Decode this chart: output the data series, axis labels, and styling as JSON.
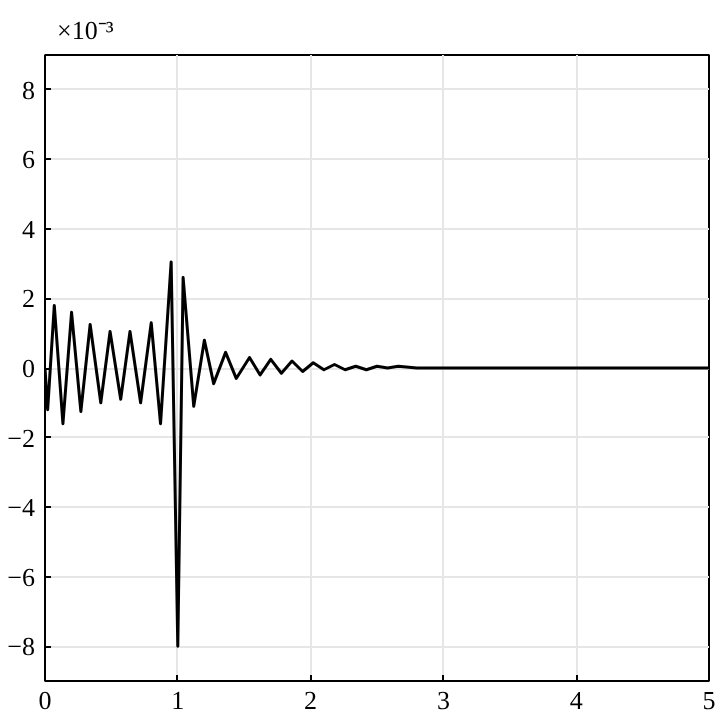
{
  "chart_data": {
    "type": "line",
    "x": [
      0,
      0.02,
      0.07,
      0.135,
      0.2,
      0.27,
      0.34,
      0.42,
      0.49,
      0.57,
      0.64,
      0.72,
      0.8,
      0.87,
      0.95,
      1.0,
      1.04,
      1.12,
      1.2,
      1.27,
      1.36,
      1.44,
      1.54,
      1.62,
      1.7,
      1.78,
      1.86,
      1.94,
      2.02,
      2.1,
      2.18,
      2.26,
      2.34,
      2.42,
      2.5,
      2.58,
      2.66,
      2.8,
      5
    ],
    "series": [
      {
        "color": "#000000",
        "values": [
          0,
          -1.2,
          1.8,
          -1.6,
          1.6,
          -1.25,
          1.25,
          -1.0,
          1.05,
          -0.9,
          1.05,
          -1.0,
          1.3,
          -1.6,
          3.05,
          -8.0,
          2.6,
          -1.1,
          0.8,
          -0.45,
          0.45,
          -0.3,
          0.3,
          -0.2,
          0.25,
          -0.15,
          0.2,
          -0.1,
          0.15,
          -0.05,
          0.1,
          -0.05,
          0.05,
          -0.05,
          0.05,
          0,
          0.05,
          0,
          0
        ]
      }
    ],
    "xlim": [
      0,
      5
    ],
    "xticks": [
      0,
      1,
      2,
      3,
      4,
      5
    ],
    "ylim": [
      -9,
      9
    ],
    "yticks": [
      -8,
      -6,
      -4,
      -2,
      0,
      2,
      4,
      6,
      8
    ],
    "annotations": [
      "×10⁻³"
    ],
    "grid": true,
    "line_style": "solid"
  }
}
